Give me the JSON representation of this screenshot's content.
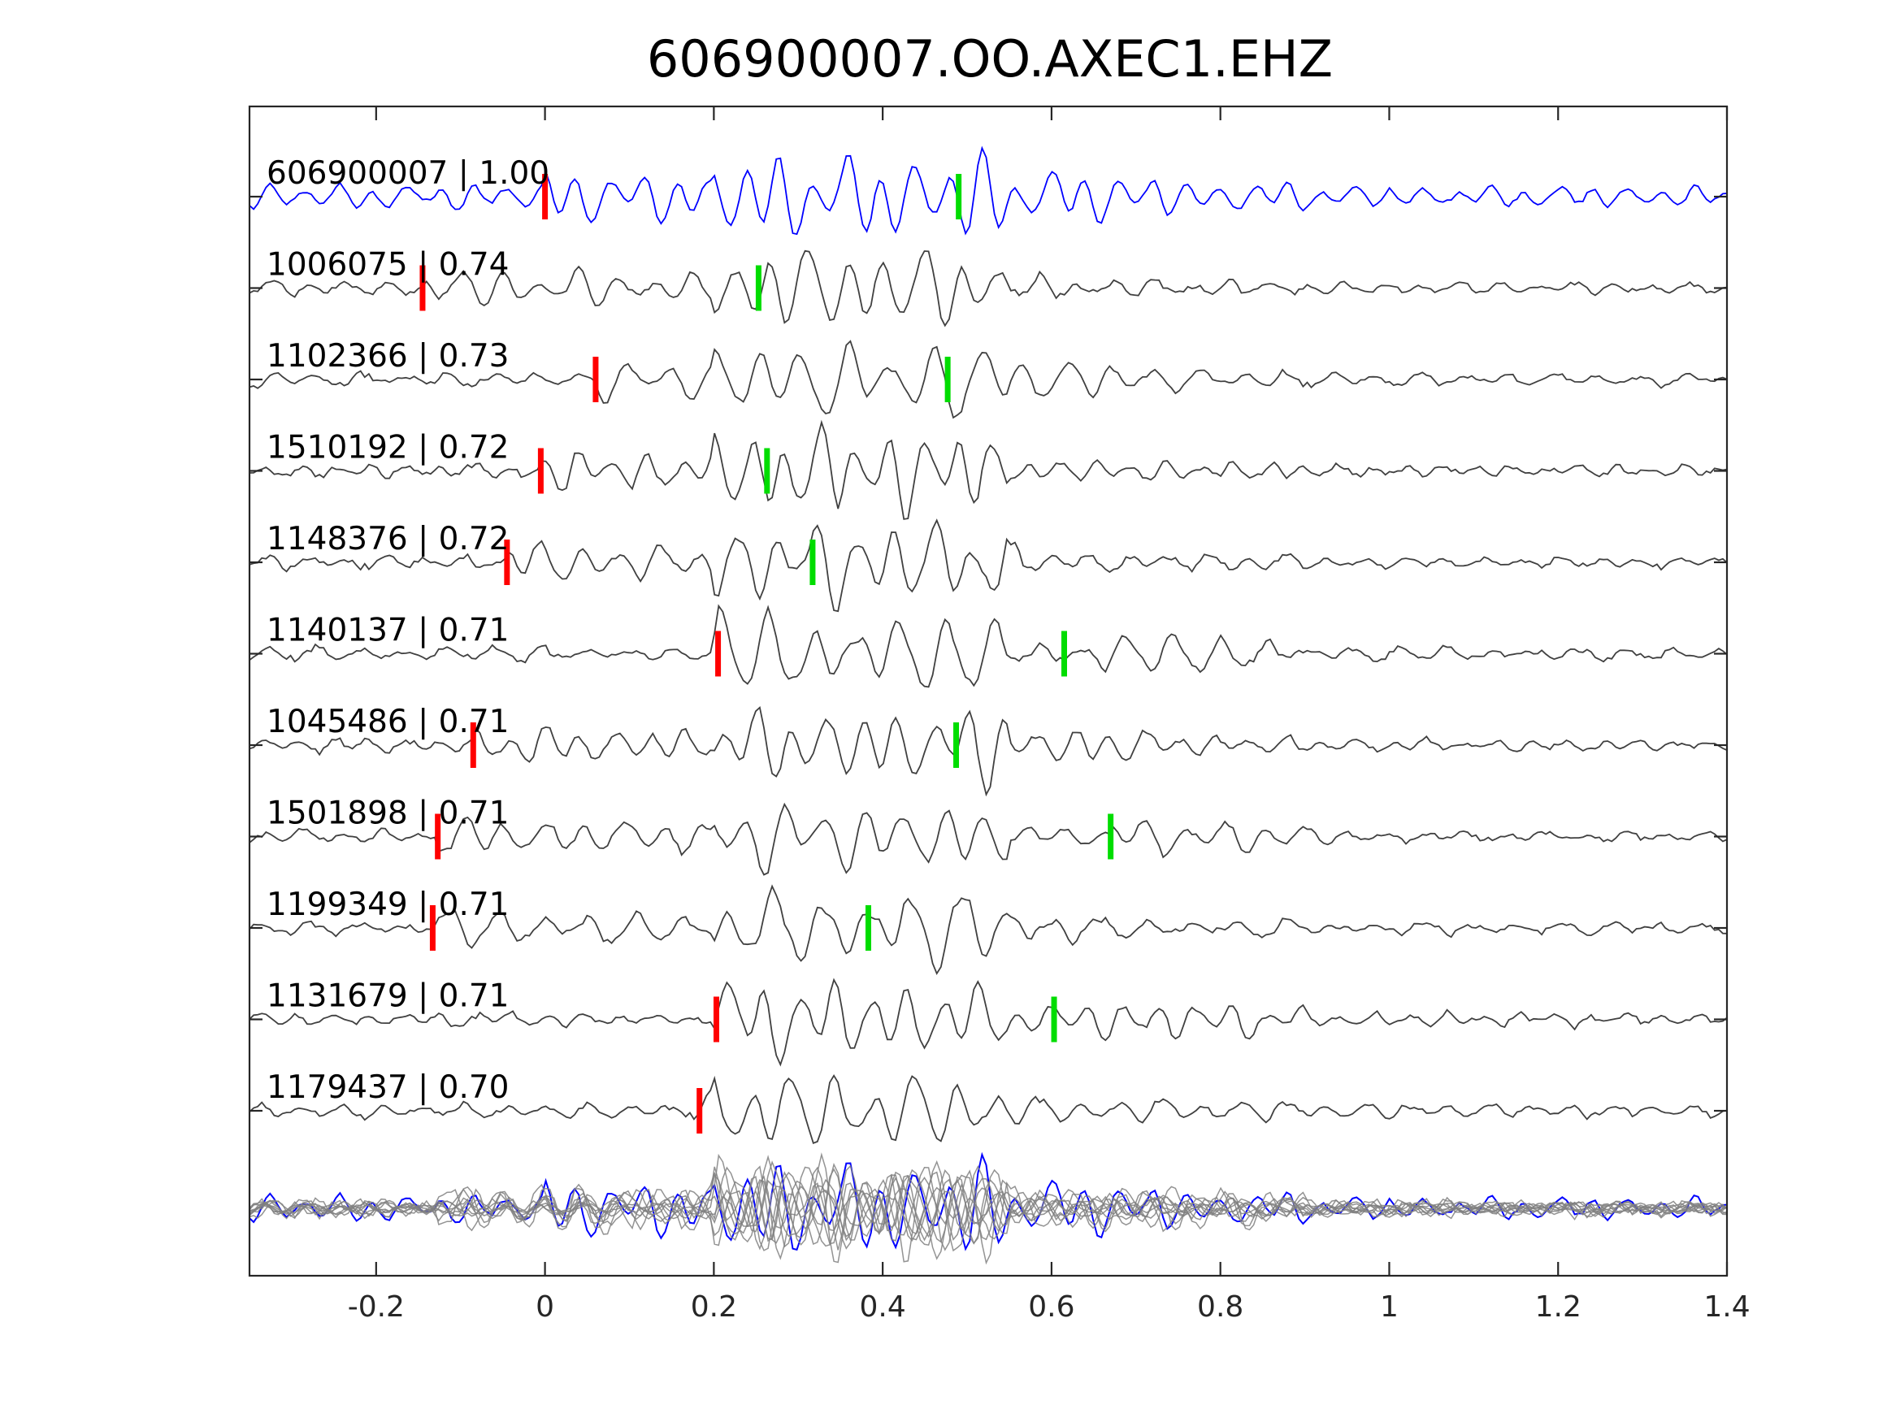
{
  "chart_data": {
    "type": "line",
    "title": "606900007.OO.AXEC1.EHZ",
    "xlabel": "",
    "ylabel": "",
    "xlim": [
      -0.35,
      1.4
    ],
    "x_ticks": [
      -0.2,
      0,
      0.2,
      0.4,
      0.6,
      0.8,
      1,
      1.2,
      1.4
    ],
    "x_tick_labels": [
      "-0.2",
      "0",
      "0.2",
      "0.4",
      "0.6",
      "0.8",
      "1",
      "1.2",
      "1.4"
    ],
    "grid": false,
    "legend": "none",
    "colors": {
      "template": "#0000ff",
      "match": "#404040",
      "overlay": "#808080",
      "p_pick": "#ff0000",
      "s_pick": "#00dd00"
    },
    "series": [
      {
        "id": "606900007",
        "cc": "1.00",
        "label": "606900007 | 1.00",
        "p_pick": 0.0,
        "s_pick": 0.49,
        "template": true
      },
      {
        "id": "1006075",
        "cc": "0.74",
        "label": "1006075 | 0.74",
        "p_pick": -0.145,
        "s_pick": 0.253
      },
      {
        "id": "1102366",
        "cc": "0.73",
        "label": "1102366 | 0.73",
        "p_pick": 0.06,
        "s_pick": 0.477
      },
      {
        "id": "1510192",
        "cc": "0.72",
        "label": "1510192 | 0.72",
        "p_pick": -0.005,
        "s_pick": 0.263
      },
      {
        "id": "1148376",
        "cc": "0.72",
        "label": "1148376 | 0.72",
        "p_pick": -0.045,
        "s_pick": 0.317
      },
      {
        "id": "1140137",
        "cc": "0.71",
        "label": "1140137 | 0.71",
        "p_pick": 0.205,
        "s_pick": 0.615
      },
      {
        "id": "1045486",
        "cc": "0.71",
        "label": "1045486 | 0.71",
        "p_pick": -0.085,
        "s_pick": 0.487
      },
      {
        "id": "1501898",
        "cc": "0.71",
        "label": "1501898 | 0.71",
        "p_pick": -0.127,
        "s_pick": 0.67
      },
      {
        "id": "1199349",
        "cc": "0.71",
        "label": "1199349 | 0.71",
        "p_pick": -0.133,
        "s_pick": 0.383
      },
      {
        "id": "1131679",
        "cc": "0.71",
        "label": "1131679 | 0.71",
        "p_pick": 0.203,
        "s_pick": 0.603
      },
      {
        "id": "1179437",
        "cc": "0.70",
        "label": "1179437 | 0.70",
        "p_pick": 0.183
      }
    ]
  }
}
